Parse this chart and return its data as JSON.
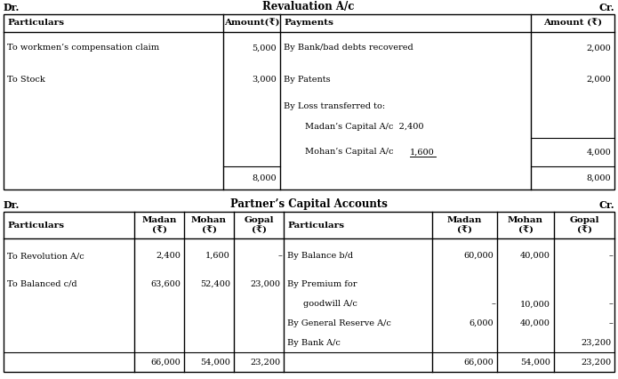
{
  "title1": "Revaluation A/c",
  "title2": "Partner’s Capital Accounts",
  "dr": "Dr.",
  "cr": "Cr.",
  "bg_color": "#ffffff",
  "fig_w": 6.95,
  "fig_h": 4.26,
  "dpi": 100
}
